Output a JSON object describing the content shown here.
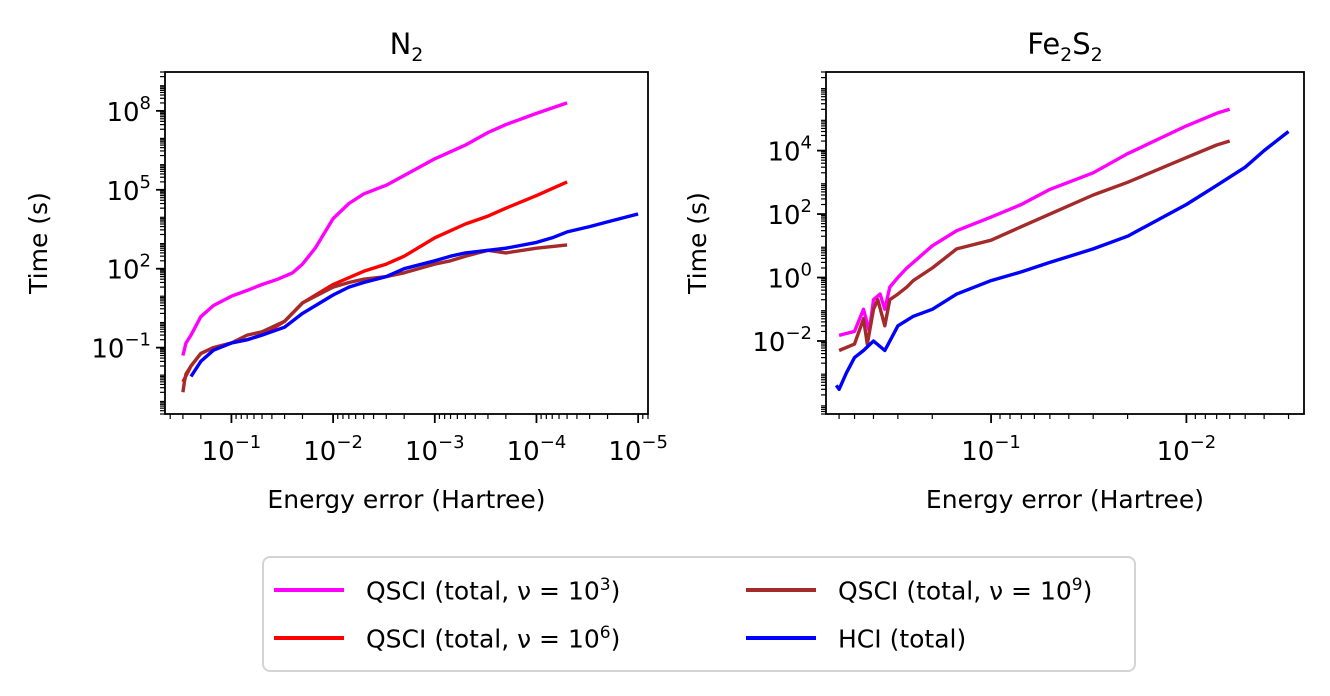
{
  "chart_data": [
    {
      "type": "line",
      "title": "N₂",
      "xlabel": "Energy error (Hartree)",
      "ylabel": "Time (s)",
      "xscale": "log-reversed",
      "yscale": "log",
      "xlim": [
        0.45,
        8e-06
      ],
      "ylim": [
        0.0003,
        3000000000
      ],
      "xticks": [
        {
          "value": 0.1,
          "label": "10",
          "exp": "−1"
        },
        {
          "value": 0.01,
          "label": "10",
          "exp": "−2"
        },
        {
          "value": 0.001,
          "label": "10",
          "exp": "−3"
        },
        {
          "value": 0.0001,
          "label": "10",
          "exp": "−4"
        },
        {
          "value": 1e-05,
          "label": "10",
          "exp": "−5"
        }
      ],
      "yticks": [
        {
          "value": 0.1,
          "label": "10",
          "exp": "−1"
        },
        {
          "value": 100,
          "label": "10",
          "exp": "2"
        },
        {
          "value": 100000,
          "label": "10",
          "exp": "5"
        },
        {
          "value": 100000000,
          "label": "10",
          "exp": "8"
        }
      ],
      "grid": false,
      "series": [
        {
          "name": "QSCI (total, ν = 10³)",
          "color": "#ff00ff",
          "x": [
            0.3,
            0.28,
            0.25,
            0.2,
            0.15,
            0.1,
            0.07,
            0.05,
            0.035,
            0.025,
            0.02,
            0.015,
            0.01,
            0.007,
            0.005,
            0.003,
            0.002,
            0.001,
            0.0005,
            0.0003,
            0.0002,
            0.0001,
            5e-05
          ],
          "y": [
            0.05,
            0.15,
            0.3,
            1.5,
            4,
            9,
            15,
            25,
            40,
            70,
            150,
            600,
            8000,
            30000,
            70000,
            150000,
            350000,
            1500000,
            5000000,
            15000000,
            30000000,
            80000000,
            200000000
          ]
        },
        {
          "name": "QSCI (total, ν = 10⁶)",
          "color": "#ff0000",
          "x": [
            0.3,
            0.25,
            0.2,
            0.15,
            0.1,
            0.07,
            0.05,
            0.03,
            0.02,
            0.01,
            0.005,
            0.003,
            0.002,
            0.001,
            0.0005,
            0.0003,
            0.0002,
            0.0001,
            5e-05
          ],
          "y": [
            0.005,
            0.02,
            0.06,
            0.1,
            0.15,
            0.2,
            0.3,
            1,
            5,
            25,
            80,
            150,
            300,
            1500,
            5000,
            10000,
            20000,
            60000,
            200000
          ]
        },
        {
          "name": "QSCI (total, ν = 10⁹)",
          "color": "#a52a2a",
          "x": [
            0.3,
            0.29,
            0.28,
            0.25,
            0.2,
            0.15,
            0.1,
            0.07,
            0.05,
            0.03,
            0.02,
            0.01,
            0.007,
            0.005,
            0.003,
            0.002,
            0.001,
            0.0007,
            0.0005,
            0.0003,
            0.0002,
            0.0001,
            5e-05
          ],
          "y": [
            0.002,
            0.005,
            0.01,
            0.02,
            0.06,
            0.1,
            0.15,
            0.3,
            0.4,
            1,
            5,
            20,
            30,
            40,
            50,
            70,
            150,
            200,
            300,
            500,
            400,
            600,
            800
          ]
        },
        {
          "name": "HCI (total)",
          "color": "#0000ff",
          "x": [
            0.25,
            0.2,
            0.15,
            0.1,
            0.07,
            0.05,
            0.03,
            0.02,
            0.01,
            0.007,
            0.005,
            0.003,
            0.002,
            0.001,
            0.0007,
            0.0005,
            0.0003,
            0.0002,
            0.0001,
            7e-05,
            5e-05,
            3e-05,
            2e-05,
            1e-05
          ],
          "y": [
            0.008,
            0.03,
            0.08,
            0.15,
            0.2,
            0.3,
            0.6,
            2,
            10,
            20,
            30,
            50,
            100,
            200,
            300,
            400,
            500,
            600,
            1000,
            1500,
            2500,
            4000,
            6000,
            12000
          ]
        }
      ]
    },
    {
      "type": "line",
      "title": "Fe₂S₂",
      "xlabel": "Energy error (Hartree)",
      "ylabel": "Time (s)",
      "xscale": "log-reversed",
      "yscale": "log",
      "xlim": [
        0.7,
        0.0025
      ],
      "ylim": [
        5e-05,
        3000000
      ],
      "xticks": [
        {
          "value": 0.1,
          "label": "10",
          "exp": "−1"
        },
        {
          "value": 0.01,
          "label": "10",
          "exp": "−2"
        }
      ],
      "yticks": [
        {
          "value": 0.01,
          "label": "10",
          "exp": "−2"
        },
        {
          "value": 1,
          "label": "10",
          "exp": "0"
        },
        {
          "value": 100,
          "label": "10",
          "exp": "2"
        },
        {
          "value": 10000,
          "label": "10",
          "exp": "4"
        }
      ],
      "grid": false,
      "series": [
        {
          "name": "QSCI (total, ν = 10³)",
          "color": "#ff00ff",
          "x": [
            0.6,
            0.5,
            0.45,
            0.42,
            0.4,
            0.37,
            0.35,
            0.33,
            0.3,
            0.27,
            0.25,
            0.2,
            0.15,
            0.1,
            0.07,
            0.05,
            0.03,
            0.02,
            0.01,
            0.007,
            0.006
          ],
          "y": [
            0.015,
            0.02,
            0.1,
            0.02,
            0.2,
            0.3,
            0.1,
            0.5,
            1,
            2,
            3,
            10,
            30,
            80,
            200,
            600,
            2000,
            8000,
            60000,
            150000,
            200000
          ]
        },
        {
          "name": "QSCI (total, ν = 10⁹)",
          "color": "#a52a2a",
          "x": [
            0.6,
            0.5,
            0.45,
            0.43,
            0.4,
            0.38,
            0.35,
            0.33,
            0.3,
            0.27,
            0.25,
            0.2,
            0.15,
            0.1,
            0.07,
            0.05,
            0.03,
            0.02,
            0.01,
            0.007,
            0.006
          ],
          "y": [
            0.005,
            0.008,
            0.05,
            0.008,
            0.1,
            0.2,
            0.03,
            0.2,
            0.3,
            0.5,
            0.8,
            2,
            8,
            15,
            40,
            100,
            400,
            1000,
            6000,
            15000,
            20000
          ]
        },
        {
          "name": "HCI (total)",
          "color": "#0000ff",
          "x": [
            0.62,
            0.6,
            0.55,
            0.5,
            0.45,
            0.4,
            0.35,
            0.3,
            0.25,
            0.2,
            0.15,
            0.1,
            0.07,
            0.05,
            0.03,
            0.02,
            0.01,
            0.007,
            0.005,
            0.004,
            0.003
          ],
          "y": [
            0.0004,
            0.0003,
            0.001,
            0.003,
            0.005,
            0.01,
            0.005,
            0.03,
            0.06,
            0.1,
            0.3,
            0.8,
            1.5,
            3,
            8,
            20,
            200,
            800,
            3000,
            10000,
            40000
          ]
        }
      ]
    }
  ],
  "legend": {
    "placement": "bottom-center",
    "items": [
      {
        "label": "QSCI (total, ν = 10",
        "sup": "3",
        "tail": ")",
        "color": "#ff00ff"
      },
      {
        "label": "QSCI (total, ν = 10",
        "sup": "6",
        "tail": ")",
        "color": "#ff0000"
      },
      {
        "label": "QSCI (total, ν = 10",
        "sup": "9",
        "tail": ")",
        "color": "#a52a2a"
      },
      {
        "label": "HCI (total)",
        "sup": "",
        "tail": "",
        "color": "#0000ff"
      }
    ]
  }
}
